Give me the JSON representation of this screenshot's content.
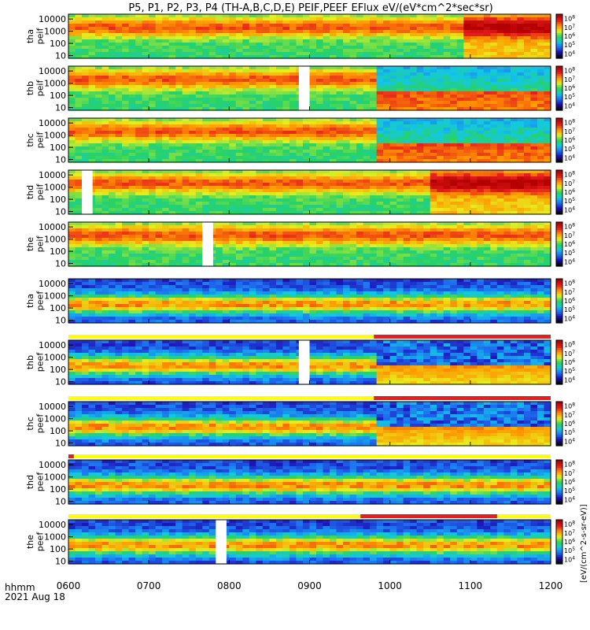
{
  "chart_data": {
    "type": "heatmap",
    "title": "P5, P1, P2, P3, P4 (TH-A,B,C,D,E) PEIF,PEEF EFlux eV/(eV*cm^2*sec*sr)",
    "x_axis": {
      "label": "hhmm",
      "date": "2021 Aug 18",
      "ticks": [
        "0600",
        "0700",
        "0800",
        "0900",
        "1000",
        "1100",
        "1200"
      ],
      "range": [
        "0600",
        "1200"
      ]
    },
    "y_axis": {
      "scale": "log",
      "ticks": [
        "10",
        "100",
        "1000",
        "10000"
      ],
      "range": [
        6,
        25000
      ]
    },
    "colorbar": {
      "scale": "log",
      "tick_exponents": [
        4,
        5,
        6,
        7,
        8
      ],
      "label": "[eV/(cm^2-s-sr-eV)]",
      "colors": [
        "#000000",
        "#1e0ab4",
        "#1e6ef0",
        "#12c8e6",
        "#28d264",
        "#e6f01e",
        "#ff9600",
        "#e61e1e",
        "#b40000"
      ]
    },
    "panels": [
      {
        "probe": "tha",
        "product": "peif",
        "label": "tha peif",
        "species": "ion",
        "gaps": [],
        "change_at": 0,
        "hot_after": "1055",
        "red_bar": null
      },
      {
        "probe": "thb",
        "product": "peif",
        "label": "thb peif",
        "species": "ion",
        "gaps": [
          [
            "0852",
            "0900"
          ]
        ],
        "change_at": "0948",
        "hot_after": null,
        "red_bar": null
      },
      {
        "probe": "thc",
        "product": "peif",
        "label": "thc peif",
        "species": "ion",
        "gaps": [],
        "change_at": "0948",
        "hot_after": null,
        "red_bar": null
      },
      {
        "probe": "thd",
        "product": "peif",
        "label": "thd peif",
        "species": "ion",
        "gaps": [
          [
            "0610",
            "0618"
          ]
        ],
        "change_at": 0,
        "hot_after": "1030",
        "red_bar": null
      },
      {
        "probe": "the",
        "product": "peif",
        "label": "the peif",
        "species": "ion",
        "gaps": [
          [
            "0740",
            "0748"
          ]
        ],
        "change_at": 0,
        "hot_after": null,
        "red_bar": null
      },
      {
        "probe": "tha",
        "product": "peef",
        "label": "tha peef",
        "species": "electron",
        "gaps": [],
        "change_at": 0,
        "hot_after": null,
        "red_bar": null
      },
      {
        "probe": "thb",
        "product": "peef",
        "label": "thb peef",
        "species": "electron",
        "gaps": [
          [
            "0852",
            "0900"
          ]
        ],
        "change_at": "0948",
        "hot_after": null,
        "red_bar": [
          "0948",
          "1200"
        ]
      },
      {
        "probe": "thc",
        "product": "peef",
        "label": "thc peef",
        "species": "electron",
        "gaps": [],
        "change_at": "0948",
        "hot_after": null,
        "red_bar": [
          "0948",
          "1200"
        ]
      },
      {
        "probe": "thd",
        "product": "peef",
        "label": "thd peef",
        "species": "electron",
        "gaps": [],
        "change_at": 0,
        "hot_after": null,
        "red_bar": [
          "0600",
          "0604"
        ]
      },
      {
        "probe": "the",
        "product": "peef",
        "label": "the peef",
        "species": "electron",
        "gaps": [
          [
            "0750",
            "0758"
          ]
        ],
        "change_at": 0,
        "hot_after": null,
        "red_bar": [
          "0938",
          "1120"
        ]
      }
    ]
  }
}
